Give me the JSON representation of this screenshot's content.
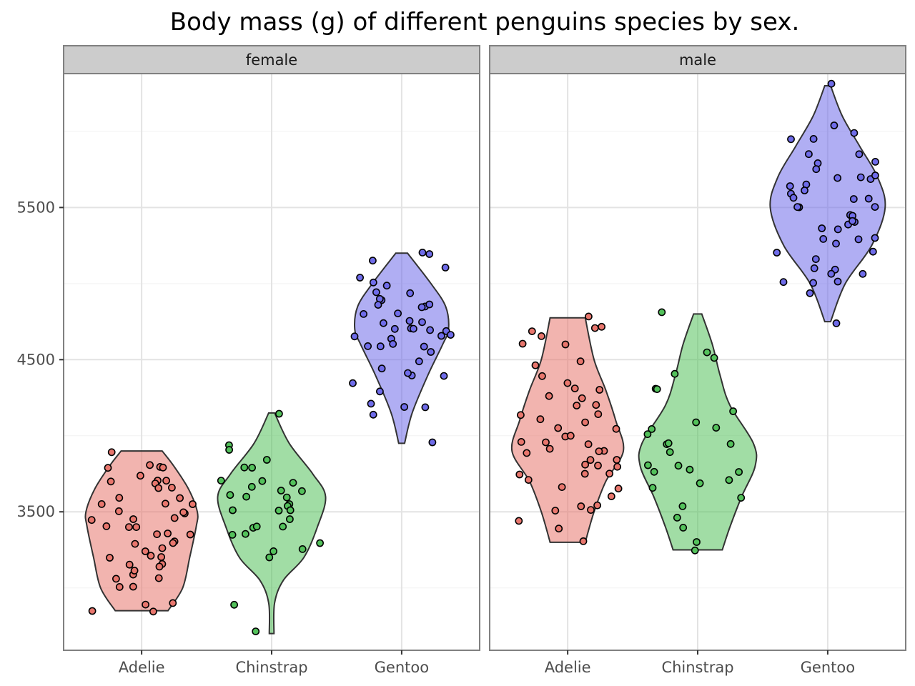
{
  "chart_data": {
    "type": "violin",
    "title": "Body mass (g) of different penguins species by sex.",
    "xlabel": "",
    "ylabel": "",
    "categories": [
      "Adelie",
      "Chinstrap",
      "Gentoo"
    ],
    "ylim": [
      2590,
      6380
    ],
    "yticks": [
      3500,
      4500,
      5500
    ],
    "grid": true,
    "points_jittered": true,
    "colors": {
      "Adelie": "#e8766d",
      "Chinstrap": "#53c15b",
      "Gentoo": "#6f6ce9"
    },
    "panels": [
      {
        "facet": "female",
        "violins": [
          {
            "species": "Adelie",
            "min": 2850,
            "max": 3900,
            "profile": [
              [
                2850,
                0.45
              ],
              [
                3000,
                0.7
              ],
              [
                3200,
                0.82
              ],
              [
                3400,
                0.93
              ],
              [
                3500,
                0.95
              ],
              [
                3650,
                0.8
              ],
              [
                3800,
                0.55
              ],
              [
                3900,
                0.35
              ]
            ]
          },
          {
            "species": "Chinstrap",
            "min": 2700,
            "max": 4150,
            "profile": [
              [
                2700,
                0.04
              ],
              [
                2900,
                0.05
              ],
              [
                3050,
                0.2
              ],
              [
                3200,
                0.55
              ],
              [
                3400,
                0.78
              ],
              [
                3600,
                0.92
              ],
              [
                3750,
                0.7
              ],
              [
                3950,
                0.3
              ],
              [
                4150,
                0.05
              ]
            ]
          },
          {
            "species": "Gentoo",
            "min": 3950,
            "max": 5200,
            "profile": [
              [
                3950,
                0.05
              ],
              [
                4150,
                0.18
              ],
              [
                4400,
                0.45
              ],
              [
                4600,
                0.7
              ],
              [
                4700,
                0.8
              ],
              [
                4850,
                0.75
              ],
              [
                5000,
                0.5
              ],
              [
                5200,
                0.1
              ]
            ]
          }
        ],
        "points": [
          {
            "species": "Adelie",
            "values": [
              3700,
              3700,
              3800,
              3800,
              3800,
              3700,
              3650,
              3800,
              3900,
              3600,
              3550,
              3550,
              3500,
              3500,
              3450,
              3450,
              3400,
              3400,
              3350,
              3350,
              3300,
              3300,
              3250,
              3250,
              3200,
              3200,
              3150,
              3150,
              3100,
              3100,
              3050,
              3050,
              3000,
              3000,
              2900,
              2900,
              2850,
              2850,
              3400,
              3650,
              3750,
              3700,
              3500,
              3450,
              3350,
              3300,
              3600,
              3550,
              3200,
              3150
            ]
          },
          {
            "species": "Chinstrap",
            "values": [
              4150,
              3950,
              3900,
              3850,
              3800,
              3800,
              3700,
              3700,
              3700,
              3650,
              3650,
              3650,
              3600,
              3600,
              3550,
              3550,
              3500,
              3500,
              3450,
              3400,
              3400,
              3350,
              3350,
              3300,
              3250,
              3250,
              3200,
              2900,
              2700,
              3400,
              3600,
              3500
            ]
          },
          {
            "species": "Gentoo",
            "values": [
              5200,
              5200,
              5150,
              5100,
              5050,
              5000,
              5000,
              4950,
              4950,
              4900,
              4900,
              4850,
              4850,
              4850,
              4850,
              4800,
              4800,
              4750,
              4750,
              4700,
              4700,
              4700,
              4700,
              4650,
              4650,
              4650,
              4650,
              4600,
              4600,
              4600,
              4600,
              4550,
              4500,
              4450,
              4400,
              4400,
              4400,
              4350,
              4300,
              4200,
              4200,
              4200,
              4150,
              3950,
              4750,
              4700
            ]
          }
        ]
      },
      {
        "facet": "male",
        "violins": [
          {
            "species": "Adelie",
            "min": 3300,
            "max": 4775,
            "profile": [
              [
                3300,
                0.3
              ],
              [
                3500,
                0.45
              ],
              [
                3700,
                0.65
              ],
              [
                3900,
                0.95
              ],
              [
                4100,
                0.82
              ],
              [
                4300,
                0.65
              ],
              [
                4500,
                0.45
              ],
              [
                4775,
                0.3
              ]
            ]
          },
          {
            "species": "Chinstrap",
            "min": 3250,
            "max": 4800,
            "profile": [
              [
                3250,
                0.42
              ],
              [
                3400,
                0.55
              ],
              [
                3600,
                0.75
              ],
              [
                3800,
                0.98
              ],
              [
                3950,
                0.95
              ],
              [
                4200,
                0.55
              ],
              [
                4400,
                0.38
              ],
              [
                4600,
                0.25
              ],
              [
                4800,
                0.07
              ]
            ]
          },
          {
            "species": "Gentoo",
            "min": 4750,
            "max": 6300,
            "profile": [
              [
                4750,
                0.05
              ],
              [
                5000,
                0.3
              ],
              [
                5250,
                0.75
              ],
              [
                5500,
                0.98
              ],
              [
                5700,
                0.85
              ],
              [
                5900,
                0.55
              ],
              [
                6100,
                0.25
              ],
              [
                6300,
                0.05
              ]
            ]
          }
        ],
        "points": [
          {
            "species": "Adelie",
            "values": [
              4775,
              4725,
              4700,
              4675,
              4650,
              4600,
              4600,
              4500,
              4450,
              4400,
              4350,
              4300,
              4300,
              4250,
              4250,
              4200,
              4200,
              4150,
              4150,
              4100,
              4100,
              4050,
              4050,
              4000,
              4000,
              3950,
              3950,
              3950,
              3900,
              3900,
              3900,
              3900,
              3850,
              3850,
              3800,
              3800,
              3800,
              3750,
              3750,
              3750,
              3700,
              3650,
              3650,
              3600,
              3550,
              3550,
              3500,
              3500,
              3450,
              3400,
              3300
            ]
          },
          {
            "species": "Chinstrap",
            "values": [
              4800,
              4550,
              4500,
              4400,
              4300,
              4300,
              4150,
              4100,
              4050,
              4050,
              4000,
              3950,
              3950,
              3950,
              3900,
              3800,
              3800,
              3775,
              3750,
              3750,
              3700,
              3700,
              3650,
              3600,
              3550,
              3450,
              3400,
              3300,
              3250
            ]
          },
          {
            "species": "Gentoo",
            "values": [
              6300,
              6050,
              6000,
              5950,
              5950,
              5850,
              5850,
              5800,
              5800,
              5750,
              5700,
              5700,
              5700,
              5700,
              5650,
              5650,
              5600,
              5600,
              5550,
              5550,
              5550,
              5500,
              5500,
              5500,
              5450,
              5450,
              5400,
              5400,
              5400,
              5350,
              5350,
              5300,
              5300,
              5300,
              5250,
              5200,
              5200,
              5150,
              5100,
              5100,
              5050,
              5050,
              5000,
              5000,
              5000,
              4950,
              4750
            ]
          }
        ]
      }
    ]
  }
}
